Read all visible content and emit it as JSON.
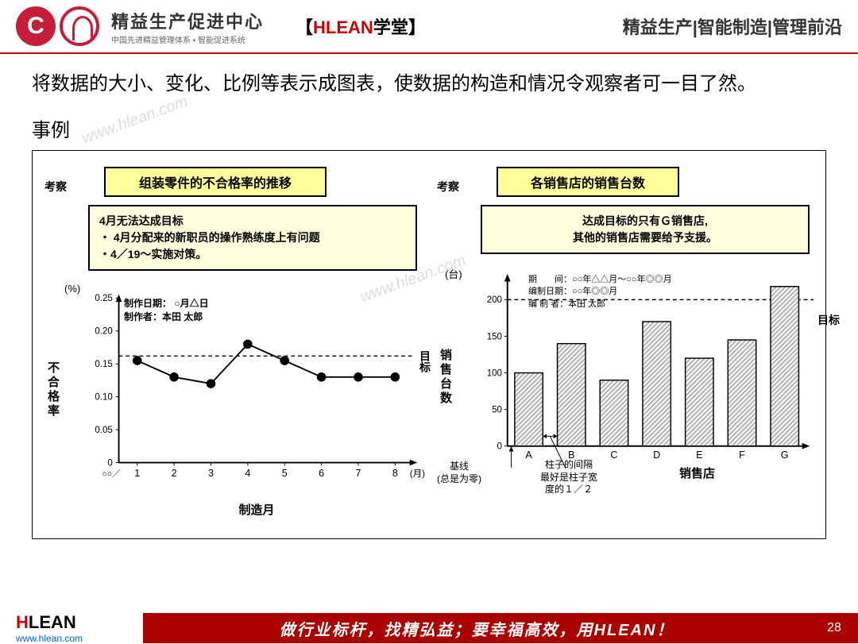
{
  "header": {
    "logo_title": "精益生产促进中心",
    "logo_sub": "中国先进精益管理体系 • 智能促进系统",
    "center_prefix": "【",
    "center_brand": "HLEAN",
    "center_suffix": "学堂】",
    "right_text": "精益生产|智能制造|管理前沿"
  },
  "description": "将数据的大小、变化、比例等表示成图表，使数据的构造和情况令观察者可一目了然。",
  "example_label": "事例",
  "watermark": "www.hlean.com",
  "left_chart": {
    "panel_label": "考察",
    "title": "组装零件的不合格率的推移",
    "note_line1": "4月无法达成目标",
    "note_line2": "・ 4月分配来的新职员的操作熟练度上有问题",
    "note_line3": "・4／19～实施对策。",
    "y_unit": "(%)",
    "y_axis_label": "不合格率",
    "x_axis_label": "制造月",
    "x_unit": "(月)",
    "x_prefix": "○○／",
    "target_label": "目标",
    "meta_line1": "制作日期： ○月△日",
    "meta_line2": "制作者：本田 太郎",
    "type": "line",
    "y_ticks": [
      0,
      0.05,
      0.1,
      0.15,
      0.2,
      0.25
    ],
    "x_categories": [
      "1",
      "2",
      "3",
      "4",
      "5",
      "6",
      "7",
      "8"
    ],
    "values": [
      0.155,
      0.13,
      0.12,
      0.18,
      0.155,
      0.13,
      0.13,
      0.13
    ],
    "target_value": 0.162,
    "line_color": "#000000",
    "marker_color": "#000000",
    "marker_size": 6,
    "background": "#ffffff"
  },
  "right_chart": {
    "panel_label": "考察",
    "title": "各销售店的销售台数",
    "note_line1": "达成目标的只有Ｇ销售店,",
    "note_line2": "其他的销售店需要给予支援。",
    "y_unit": "(台)",
    "y_axis_label": "销售台数",
    "x_axis_label": "销售店",
    "target_label": "目标",
    "meta_line1": "期　　间：○○年△△月～○○年◎◎月",
    "meta_line2": "编制日期：○○年◎◎月",
    "meta_line3": "编 制 者：本田 太郎",
    "type": "bar",
    "y_ticks": [
      0,
      50,
      100,
      150,
      200
    ],
    "x_categories": [
      "A",
      "B",
      "C",
      "D",
      "E",
      "F",
      "G"
    ],
    "values": [
      100,
      140,
      90,
      170,
      120,
      145,
      218
    ],
    "target_value": 200,
    "bar_fill": "#e8e8e8",
    "bar_hatch": "diagonal",
    "bar_stroke": "#000000",
    "annotation1": "基线\n(总是为零)",
    "annotation2": "柱子的间隔\n最好是柱子宽\n度的１／２"
  },
  "footer": {
    "brand_h": "H",
    "brand_rest": "LEAN",
    "url": "www.hlean.com",
    "banner": "做行业标杆，找精弘益；要幸福高效，用HLEAN！",
    "page": "28"
  }
}
